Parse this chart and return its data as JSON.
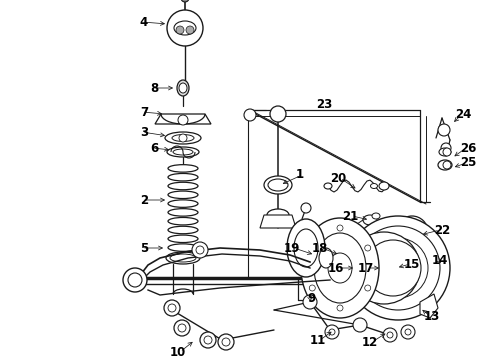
{
  "bg_color": "#ffffff",
  "line_color": "#1a1a1a",
  "text_color": "#000000",
  "lw": 0.9,
  "figsize": [
    4.9,
    3.6
  ],
  "dpi": 100
}
